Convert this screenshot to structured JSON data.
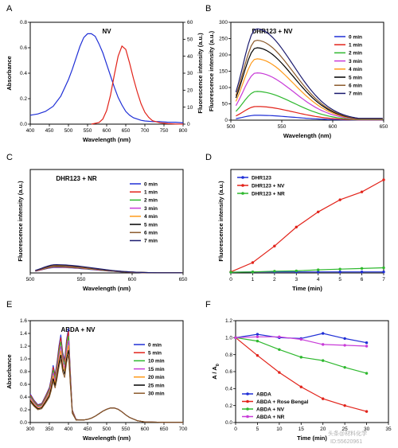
{
  "colors": {
    "c0min": "#1f2fd6",
    "c1min": "#e2231a",
    "c2min": "#2eb82e",
    "c3min": "#c83cd8",
    "c4min": "#ff9a1a",
    "c5min": "#000000",
    "c6min": "#8b5a2b",
    "c7min": "#1a1a6e",
    "abda10": "#2eb82e",
    "abda15": "#c83cd8",
    "abda20": "#ff9a1a",
    "abda25": "#000000",
    "abda30": "#8b5a2b"
  },
  "watermark": "头条@材料化学",
  "watermark2": "ID:55620961",
  "chart_data": [
    {
      "panel_letter": "A",
      "type": "line",
      "title": "NV",
      "xlabel": "Wavelength (nm)",
      "ylabel": "Absorbance",
      "y2label": "Fluorescence intensity (a.u.)",
      "xlim": [
        400,
        800
      ],
      "ylim": [
        0,
        0.8
      ],
      "y2lim": [
        0,
        60
      ],
      "xticks": [
        400,
        450,
        500,
        550,
        600,
        650,
        700,
        750,
        800
      ],
      "yticks": [
        0.0,
        0.2,
        0.4,
        0.6,
        0.8
      ],
      "y2ticks": [
        0,
        10,
        20,
        30,
        40,
        50,
        60
      ],
      "series": [
        {
          "axis": "left",
          "color": "#1f2fd6",
          "x": [
            400,
            420,
            440,
            460,
            480,
            500,
            510,
            520,
            530,
            540,
            550,
            560,
            570,
            580,
            590,
            600,
            610,
            620,
            630,
            640,
            650,
            660,
            670,
            680,
            690,
            700,
            720,
            740,
            760,
            780,
            800
          ],
          "y": [
            0.07,
            0.08,
            0.1,
            0.14,
            0.22,
            0.35,
            0.43,
            0.52,
            0.61,
            0.68,
            0.71,
            0.71,
            0.69,
            0.63,
            0.56,
            0.47,
            0.38,
            0.29,
            0.21,
            0.15,
            0.1,
            0.07,
            0.05,
            0.04,
            0.03,
            0.025,
            0.02,
            0.02,
            0.015,
            0.015,
            0.01
          ]
        },
        {
          "axis": "right",
          "color": "#e2231a",
          "x": [
            560,
            580,
            590,
            600,
            610,
            620,
            630,
            640,
            650,
            660,
            670,
            680,
            690,
            700,
            710,
            720,
            740,
            760,
            780,
            800
          ],
          "y": [
            0,
            1,
            3,
            8,
            17,
            29,
            40,
            46,
            44,
            36,
            27,
            19,
            12,
            7,
            4,
            2,
            0.8,
            0.3,
            0.1,
            0
          ]
        }
      ]
    },
    {
      "panel_letter": "B",
      "type": "line",
      "title": "DHR123 + NV",
      "xlabel": "Wavelength (nm)",
      "ylabel": "Fluorescence intensity (a.u.)",
      "xlim": [
        500,
        650
      ],
      "ylim": [
        0,
        300
      ],
      "xticks": [
        500,
        550,
        600,
        650
      ],
      "yticks": [
        0,
        50,
        100,
        150,
        200,
        250,
        300
      ],
      "peak_x": 525,
      "series": [
        {
          "name": "0 min",
          "color": "#1f2fd6",
          "peak": 15
        },
        {
          "name": "1 min",
          "color": "#e2231a",
          "peak": 42
        },
        {
          "name": "2 min",
          "color": "#2eb82e",
          "peak": 88
        },
        {
          "name": "3 min",
          "color": "#c83cd8",
          "peak": 145
        },
        {
          "name": "4 min",
          "color": "#ff9a1a",
          "peak": 188
        },
        {
          "name": "5 min",
          "color": "#000000",
          "peak": 222
        },
        {
          "name": "6 min",
          "color": "#8b5a2b",
          "peak": 245
        },
        {
          "name": "7 min",
          "color": "#1a1a6e",
          "peak": 280
        }
      ]
    },
    {
      "panel_letter": "C",
      "type": "line",
      "title": "DHR123 + NR",
      "xlabel": "Wavelength (nm)",
      "ylabel": "Fluorescence intensity (a.u.)",
      "xlim": [
        500,
        650
      ],
      "ylim": [
        0,
        300
      ],
      "xticks": [
        500,
        550,
        600,
        650
      ],
      "yticks": [],
      "peak_x": 525,
      "series": [
        {
          "name": "0 min",
          "color": "#1f2fd6",
          "peak": 16
        },
        {
          "name": "1 min",
          "color": "#e2231a",
          "peak": 17
        },
        {
          "name": "2 min",
          "color": "#2eb82e",
          "peak": 18
        },
        {
          "name": "3 min",
          "color": "#c83cd8",
          "peak": 19
        },
        {
          "name": "4 min",
          "color": "#ff9a1a",
          "peak": 20
        },
        {
          "name": "5 min",
          "color": "#000000",
          "peak": 21
        },
        {
          "name": "6 min",
          "color": "#8b5a2b",
          "peak": 22
        },
        {
          "name": "7 min",
          "color": "#1a1a6e",
          "peak": 24
        }
      ]
    },
    {
      "panel_letter": "D",
      "type": "line",
      "xlabel": "Time (min)",
      "ylabel": "Fluorescence intensity (a.u.)",
      "xlim": [
        0,
        7
      ],
      "ylim": [
        0,
        300
      ],
      "xticks": [
        0,
        1,
        2,
        3,
        4,
        5,
        6,
        7
      ],
      "yticks": [],
      "x": [
        0,
        1,
        2,
        3,
        4,
        5,
        6,
        7
      ],
      "series": [
        {
          "name": "DHR123",
          "color": "#1f2fd6",
          "values": [
            2,
            3,
            3,
            3,
            3,
            3,
            3,
            3
          ]
        },
        {
          "name": "DHR123 + NV",
          "color": "#e2231a",
          "values": [
            3,
            30,
            78,
            133,
            177,
            212,
            235,
            270
          ]
        },
        {
          "name": "DHR123 + NR",
          "color": "#2eb82e",
          "values": [
            2,
            3,
            5,
            6,
            9,
            11,
            13,
            15
          ]
        }
      ]
    },
    {
      "panel_letter": "E",
      "type": "line",
      "title": "ABDA + NV",
      "xlabel": "Wavelength (nm)",
      "ylabel": "Absorbance",
      "xlim": [
        300,
        700
      ],
      "ylim": [
        0,
        1.6
      ],
      "xticks": [
        300,
        350,
        400,
        450,
        500,
        550,
        600,
        650,
        700
      ],
      "yticks": [
        0.0,
        0.2,
        0.4,
        0.6,
        0.8,
        1.0,
        1.2,
        1.4,
        1.6
      ],
      "series": [
        {
          "name": "0 min",
          "color": "#1f2fd6",
          "scale": 1.0
        },
        {
          "name": "5 min",
          "color": "#e2231a",
          "scale": 0.97
        },
        {
          "name": "10 min",
          "color": "#2eb82e",
          "scale": 0.92
        },
        {
          "name": "15 min",
          "color": "#c83cd8",
          "scale": 0.87
        },
        {
          "name": "20 min",
          "color": "#ff9a1a",
          "scale": 0.82
        },
        {
          "name": "25 min",
          "color": "#000000",
          "scale": 0.77
        },
        {
          "name": "30 min",
          "color": "#8b5a2b",
          "scale": 0.72
        }
      ],
      "base_shape": {
        "x": [
          300,
          310,
          320,
          330,
          340,
          350,
          355,
          360,
          365,
          370,
          375,
          380,
          385,
          390,
          395,
          400,
          405,
          410,
          420,
          430,
          440,
          450,
          460,
          470,
          480,
          490,
          500,
          510,
          520,
          530,
          540,
          550,
          560,
          580,
          600,
          650,
          700
        ],
        "y": [
          0.45,
          0.35,
          0.28,
          0.3,
          0.42,
          0.55,
          0.7,
          0.9,
          0.75,
          0.95,
          1.2,
          1.38,
          1.1,
          0.98,
          1.3,
          1.48,
          0.8,
          0.2,
          0.05,
          0.04,
          0.04,
          0.05,
          0.07,
          0.1,
          0.14,
          0.18,
          0.21,
          0.23,
          0.23,
          0.21,
          0.17,
          0.12,
          0.08,
          0.03,
          0.01,
          0.005,
          0.005
        ]
      }
    },
    {
      "panel_letter": "F",
      "type": "line",
      "xlabel": "Time (min)",
      "ylabel": "A / A",
      "ylabel_sub": "0",
      "xlim": [
        0,
        35
      ],
      "ylim": [
        0,
        1.2
      ],
      "xticks": [
        0,
        5,
        10,
        15,
        20,
        25,
        30,
        35
      ],
      "yticks": [
        0.0,
        0.2,
        0.4,
        0.6,
        0.8,
        1.0,
        1.2
      ],
      "x": [
        0,
        5,
        10,
        15,
        20,
        25,
        30
      ],
      "series": [
        {
          "name": "ABDA",
          "color": "#1f2fd6",
          "values": [
            1.0,
            1.04,
            1.0,
            0.99,
            1.05,
            0.99,
            0.94
          ]
        },
        {
          "name": "ABDA + Rose Bengal",
          "color": "#e2231a",
          "values": [
            1.0,
            0.79,
            0.59,
            0.42,
            0.28,
            0.2,
            0.13
          ]
        },
        {
          "name": "ABDA + NV",
          "color": "#2eb82e",
          "values": [
            1.0,
            0.96,
            0.86,
            0.77,
            0.73,
            0.65,
            0.58
          ]
        },
        {
          "name": "ABDA + NR",
          "color": "#c83cd8",
          "values": [
            1.0,
            1.01,
            1.01,
            0.98,
            0.92,
            0.91,
            0.9
          ]
        }
      ]
    }
  ]
}
